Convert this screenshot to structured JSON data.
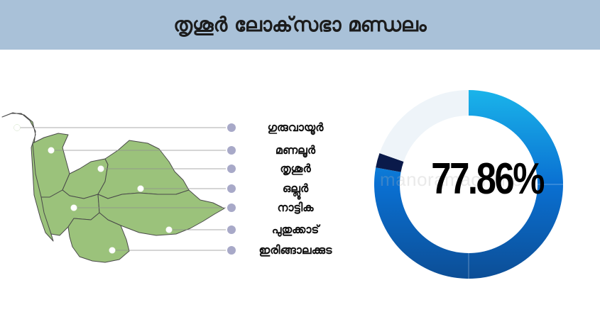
{
  "header": {
    "title": "തൃശൂർ ലോക്‌സഭാ മണ്ഡലം"
  },
  "constituencies": [
    "ഗുരുവായൂർ",
    "മണലൂർ",
    "തൃശൂർ",
    "ഒല്ലൂർ",
    "നാട്ടിക",
    "പുതുക്കാട്",
    "ഇരിങ്ങാലക്കുട"
  ],
  "colors": {
    "header_bg": "#a9c1d8",
    "map_fill": "#9bc27b",
    "map_stroke": "#4a4a4a",
    "bullet": "#a8a9c8",
    "leader_line": "#8f8f8f"
  },
  "watermark": "manoramaonline",
  "chart_data": {
    "type": "pie",
    "variant": "donut",
    "center_label": "77.86%",
    "slices": [
      {
        "value": 77.86,
        "color": "#0f5faa"
      },
      {
        "value": 2.5,
        "color": "#0a1a4a"
      },
      {
        "value": 19.64,
        "color": "#eef4f9"
      }
    ],
    "slice_gradient": [
      "#1ab4ea",
      "#0a70d2",
      "#0c4e96",
      "#0f5faa"
    ],
    "start_angle_deg": 0,
    "direction": "clockwise"
  }
}
